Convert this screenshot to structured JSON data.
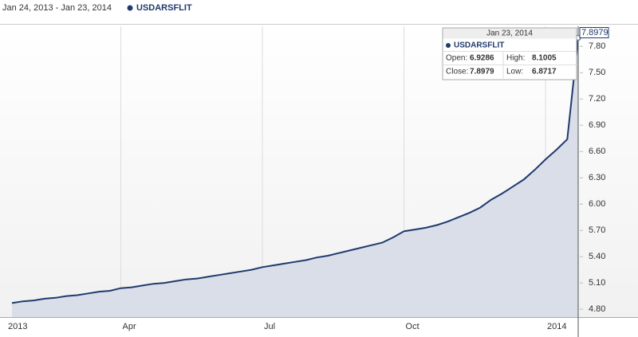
{
  "chart_data": {
    "type": "line",
    "subtitle": "Jan 24, 2013 - Jan 23, 2014",
    "categories": [
      "2013",
      null,
      null,
      null,
      null,
      null,
      null,
      null,
      null,
      null,
      "Apr",
      null,
      null,
      null,
      null,
      null,
      null,
      null,
      null,
      null,
      null,
      null,
      null,
      "Jul",
      null,
      null,
      null,
      null,
      null,
      null,
      null,
      null,
      null,
      null,
      null,
      null,
      "Oct",
      null,
      null,
      null,
      null,
      null,
      null,
      null,
      null,
      null,
      null,
      null,
      null,
      "2014",
      null,
      null,
      null
    ],
    "series": [
      {
        "name": "USDARSFLIT",
        "color": "#1f3a6e",
        "values": [
          4.87,
          4.89,
          4.9,
          4.92,
          4.93,
          4.95,
          4.96,
          4.98,
          5.0,
          5.01,
          5.04,
          5.05,
          5.07,
          5.09,
          5.1,
          5.12,
          5.14,
          5.15,
          5.17,
          5.19,
          5.21,
          5.23,
          5.25,
          5.28,
          5.3,
          5.32,
          5.34,
          5.36,
          5.39,
          5.41,
          5.44,
          5.47,
          5.5,
          5.53,
          5.56,
          5.62,
          5.69,
          5.71,
          5.73,
          5.76,
          5.8,
          5.85,
          5.9,
          5.96,
          6.05,
          6.12,
          6.2,
          6.28,
          6.39,
          6.51,
          6.62,
          6.74,
          7.8979
        ]
      }
    ],
    "area_color": "#d9dee8",
    "ylim": [
      4.71,
      8.03
    ],
    "yticks": [
      {
        "value": 4.8,
        "label": "4.80"
      },
      {
        "value": 5.1,
        "label": "5.10"
      },
      {
        "value": 5.4,
        "label": "5.40"
      },
      {
        "value": 5.7,
        "label": "5.70"
      },
      {
        "value": 6.0,
        "label": "6.00"
      },
      {
        "value": 6.3,
        "label": "6.30"
      },
      {
        "value": 6.6,
        "label": "6.60"
      },
      {
        "value": 6.9,
        "label": "6.90"
      },
      {
        "value": 7.2,
        "label": "7.20"
      },
      {
        "value": 7.5,
        "label": "7.50"
      },
      {
        "value": 7.8,
        "label": "7.80"
      }
    ],
    "grid": true,
    "tooltip": {
      "date": "Jan 23, 2014",
      "rows": [
        [
          {
            "label": "Open:",
            "value": 6.9286
          },
          {
            "label": "High:",
            "value": 8.1005
          }
        ],
        [
          {
            "label": "Close:",
            "value": 7.8979
          },
          {
            "label": "Low:",
            "value": 6.8717
          }
        ]
      ]
    }
  }
}
